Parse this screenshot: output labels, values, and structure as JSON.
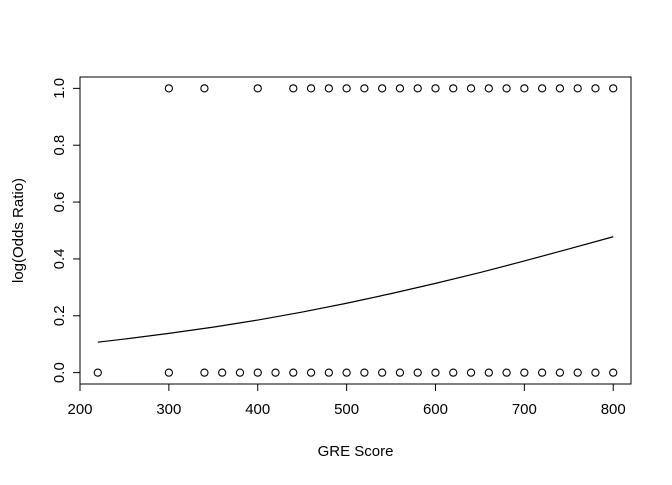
{
  "chart_data": {
    "type": "scatter",
    "title": "",
    "xlabel": "GRE Score",
    "ylabel": "log(Odds Ratio)",
    "xlim": [
      200,
      820
    ],
    "ylim": [
      -0.04,
      1.04
    ],
    "x_ticks": [
      "200",
      "300",
      "400",
      "500",
      "600",
      "700",
      "800"
    ],
    "x_tick_values": [
      200,
      300,
      400,
      500,
      600,
      700,
      800
    ],
    "y_ticks": [
      "0.0",
      "0.2",
      "0.4",
      "0.6",
      "0.8",
      "1.0"
    ],
    "y_tick_values": [
      0,
      0.2,
      0.4,
      0.6,
      0.8,
      1.0
    ],
    "grid": false,
    "series": [
      {
        "type": "scatter",
        "marker": "open-circle",
        "x_admitted": [
          300,
          340,
          400,
          440,
          460,
          480,
          500,
          520,
          540,
          560,
          580,
          600,
          620,
          640,
          660,
          680,
          700,
          720,
          740,
          760,
          780,
          800
        ],
        "x_rejected": [
          220,
          300,
          340,
          360,
          380,
          400,
          420,
          440,
          460,
          480,
          500,
          520,
          540,
          560,
          580,
          600,
          620,
          640,
          660,
          680,
          700,
          720,
          740,
          760,
          780,
          800
        ]
      },
      {
        "type": "line",
        "x": [
          220,
          250,
          300,
          350,
          400,
          450,
          500,
          550,
          600,
          650,
          700,
          750,
          800
        ],
        "y": [
          0.107,
          0.118,
          0.138,
          0.16,
          0.185,
          0.213,
          0.244,
          0.278,
          0.314,
          0.352,
          0.393,
          0.435,
          0.478
        ]
      }
    ],
    "colors": {
      "points": "#000000",
      "line": "#000000",
      "axis": "#000000",
      "background": "#ffffff"
    }
  }
}
